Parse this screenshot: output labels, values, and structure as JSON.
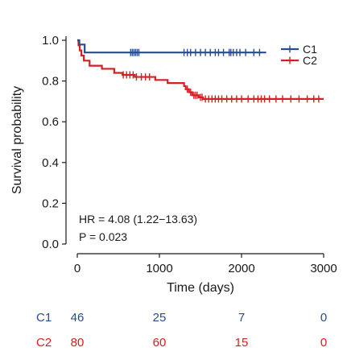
{
  "chart_data": {
    "type": "line",
    "subtype": "kaplan-meier",
    "xlabel": "Time (days)",
    "ylabel": "Survival probability",
    "xlim": [
      0,
      3000
    ],
    "ylim": [
      0,
      1.0
    ],
    "x_ticks": [
      0,
      1000,
      2000,
      3000
    ],
    "x_tick_labels": [
      "0",
      "1000",
      "2000",
      "3000"
    ],
    "y_ticks": [
      0,
      0.2,
      0.4,
      0.6,
      0.8,
      1.0
    ],
    "y_tick_labels": [
      "0.0",
      "0.2",
      "0.4",
      "0.6",
      "0.8",
      "1.0"
    ],
    "grid": false,
    "legend_position": "top-right",
    "annotations": [
      "HR = 4.08 (1.22−13.63)",
      "P = 0.023"
    ],
    "series": [
      {
        "name": "C1",
        "color": "#2a4b8d",
        "steps": [
          [
            0,
            1.0
          ],
          [
            25,
            0.979
          ],
          [
            90,
            0.94
          ],
          [
            2300,
            0.94
          ]
        ],
        "censor_x": [
          650,
          670,
          690,
          710,
          730,
          750,
          1300,
          1340,
          1380,
          1440,
          1500,
          1560,
          1620,
          1680,
          1720,
          1780,
          1850,
          1870,
          1900,
          1940,
          1980,
          2050,
          2150,
          2220
        ]
      },
      {
        "name": "C2",
        "color": "#d42020",
        "steps": [
          [
            0,
            1.0
          ],
          [
            15,
            0.975
          ],
          [
            30,
            0.95
          ],
          [
            50,
            0.925
          ],
          [
            80,
            0.9
          ],
          [
            150,
            0.875
          ],
          [
            300,
            0.86
          ],
          [
            450,
            0.84
          ],
          [
            550,
            0.83
          ],
          [
            700,
            0.82
          ],
          [
            950,
            0.805
          ],
          [
            1100,
            0.79
          ],
          [
            1300,
            0.775
          ],
          [
            1320,
            0.76
          ],
          [
            1360,
            0.745
          ],
          [
            1400,
            0.73
          ],
          [
            1480,
            0.72
          ],
          [
            1530,
            0.712
          ],
          [
            3000,
            0.712
          ]
        ],
        "censor_x": [
          560,
          600,
          640,
          680,
          720,
          780,
          830,
          880,
          1340,
          1380,
          1420,
          1440,
          1460,
          1500,
          1520,
          1560,
          1600,
          1640,
          1680,
          1720,
          1760,
          1820,
          1880,
          1940,
          2000,
          2080,
          2150,
          2200,
          2240,
          2280,
          2340,
          2420,
          2500,
          2600,
          2700,
          2800,
          2880,
          2940
        ]
      }
    ],
    "risk_table": {
      "times": [
        0,
        1000,
        2000,
        3000
      ],
      "rows": [
        {
          "label": "C1",
          "counts": [
            "46",
            "25",
            "7",
            "0"
          ]
        },
        {
          "label": "C2",
          "counts": [
            "80",
            "60",
            "15",
            "0"
          ]
        }
      ]
    }
  }
}
